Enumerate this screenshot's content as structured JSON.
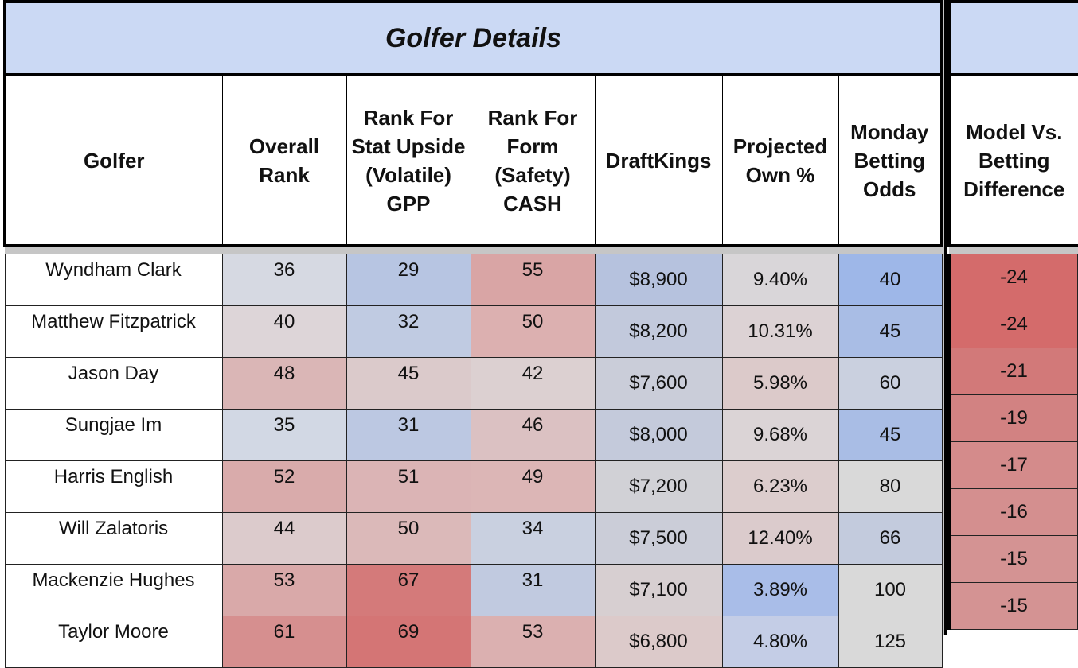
{
  "title": "Golfer Details",
  "headers": {
    "golfer": "Golfer",
    "overall_rank": "Overall Rank",
    "rank_stat": "Rank For Stat Upside (Volatile) GPP",
    "rank_form": "Rank For Form (Safety) CASH",
    "draftkings": "DraftKings",
    "projected_own": "Projected Own %",
    "betting_odds": "Monday Betting Odds",
    "model_vs_betting": "Model Vs. Betting Difference"
  },
  "rows": [
    {
      "golfer": "Wyndham Clark",
      "overall": "36",
      "stat": "29",
      "form": "55",
      "dk": "$8,900",
      "own": "9.40%",
      "odds": "40",
      "diff": "-24",
      "colors": {
        "overall": "#d6d9e2",
        "stat": "#b7c5e2",
        "form": "#d9a5a5",
        "dk": "#b6c2de",
        "own": "#d9d6d9",
        "odds": "#9eb7e8",
        "diff": "#d46b6b"
      }
    },
    {
      "golfer": "Matthew Fitzpatrick",
      "overall": "40",
      "stat": "32",
      "form": "50",
      "dk": "$8,200",
      "own": "10.31%",
      "odds": "45",
      "diff": "-24",
      "colors": {
        "overall": "#ddd5d8",
        "stat": "#c0cbe2",
        "form": "#dcb0b0",
        "dk": "#c2c9dc",
        "own": "#dcd2d4",
        "odds": "#a9bde5",
        "diff": "#d46b6b"
      }
    },
    {
      "golfer": "Jason Day",
      "overall": "48",
      "stat": "45",
      "form": "42",
      "dk": "$7,600",
      "own": "5.98%",
      "odds": "60",
      "diff": "-21",
      "colors": {
        "overall": "#dab6b6",
        "stat": "#dbcacb",
        "form": "#dcd0d1",
        "dk": "#cacdd9",
        "own": "#dccaca",
        "odds": "#cad0df",
        "diff": "#d27979"
      }
    },
    {
      "golfer": "Sungjae Im",
      "overall": "35",
      "stat": "31",
      "form": "46",
      "dk": "$8,000",
      "own": "9.68%",
      "odds": "45",
      "diff": "-19",
      "colors": {
        "overall": "#d2d8e4",
        "stat": "#bcc8e2",
        "form": "#dbc1c2",
        "dk": "#c4cadb",
        "own": "#dbd4d6",
        "odds": "#a9bde5",
        "diff": "#d28282"
      }
    },
    {
      "golfer": "Harris English",
      "overall": "52",
      "stat": "51",
      "form": "49",
      "dk": "$7,200",
      "own": "6.23%",
      "odds": "80",
      "diff": "-17",
      "colors": {
        "overall": "#d9abab",
        "stat": "#dbb4b5",
        "form": "#dcb6b6",
        "dk": "#d1d1d6",
        "own": "#dccdcd",
        "odds": "#d9d9d9",
        "diff": "#d48b8b"
      }
    },
    {
      "golfer": "Will Zalatoris",
      "overall": "44",
      "stat": "50",
      "form": "34",
      "dk": "$7,500",
      "own": "12.40%",
      "odds": "66",
      "diff": "-16",
      "colors": {
        "overall": "#dccbcc",
        "stat": "#dbb9b9",
        "form": "#c9d0e0",
        "dk": "#cbcdd8",
        "own": "#dbcbcc",
        "odds": "#c3cbdd",
        "diff": "#d48f8f"
      }
    },
    {
      "golfer": "Mackenzie Hughes",
      "overall": "53",
      "stat": "67",
      "form": "31",
      "dk": "$7,100",
      "own": "3.89%",
      "odds": "100",
      "diff": "-15",
      "colors": {
        "overall": "#d9a9a9",
        "stat": "#d47a7a",
        "form": "#c1cae0",
        "dk": "#d7cfd1",
        "own": "#a9bde8",
        "odds": "#d9d9d9",
        "diff": "#d49393"
      }
    },
    {
      "golfer": "Taylor Moore",
      "overall": "61",
      "stat": "69",
      "form": "53",
      "dk": "$6,800",
      "own": "4.80%",
      "odds": "125",
      "diff": "-15",
      "colors": {
        "overall": "#d68f8f",
        "stat": "#d47575",
        "form": "#dbb0b0",
        "dk": "#dccaca",
        "own": "#c4cde6",
        "odds": "#d9d9d9",
        "diff": "#d49393"
      }
    }
  ]
}
